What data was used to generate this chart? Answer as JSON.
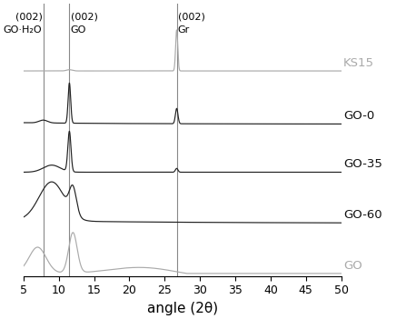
{
  "xlim": [
    5,
    50
  ],
  "xlabel": "angle (2θ)",
  "vlines": [
    7.8,
    11.5,
    26.7
  ],
  "series_labels": [
    "KS15",
    "GO-0",
    "GO-35",
    "GO-60",
    "GO"
  ],
  "series_colors": [
    "#aaaaaa",
    "#222222",
    "#222222",
    "#222222",
    "#aaaaaa"
  ],
  "label_colors": [
    "#aaaaaa",
    "#111111",
    "#111111",
    "#111111",
    "#aaaaaa"
  ],
  "xticks": [
    5,
    10,
    15,
    20,
    25,
    30,
    35,
    40,
    45,
    50
  ],
  "offsets": [
    4.2,
    3.1,
    2.1,
    1.05,
    0.0
  ],
  "scale": 0.85,
  "label_fontsize": 9.5,
  "tick_fontsize": 9,
  "xlabel_fontsize": 11,
  "annotation_fontsize": 8
}
